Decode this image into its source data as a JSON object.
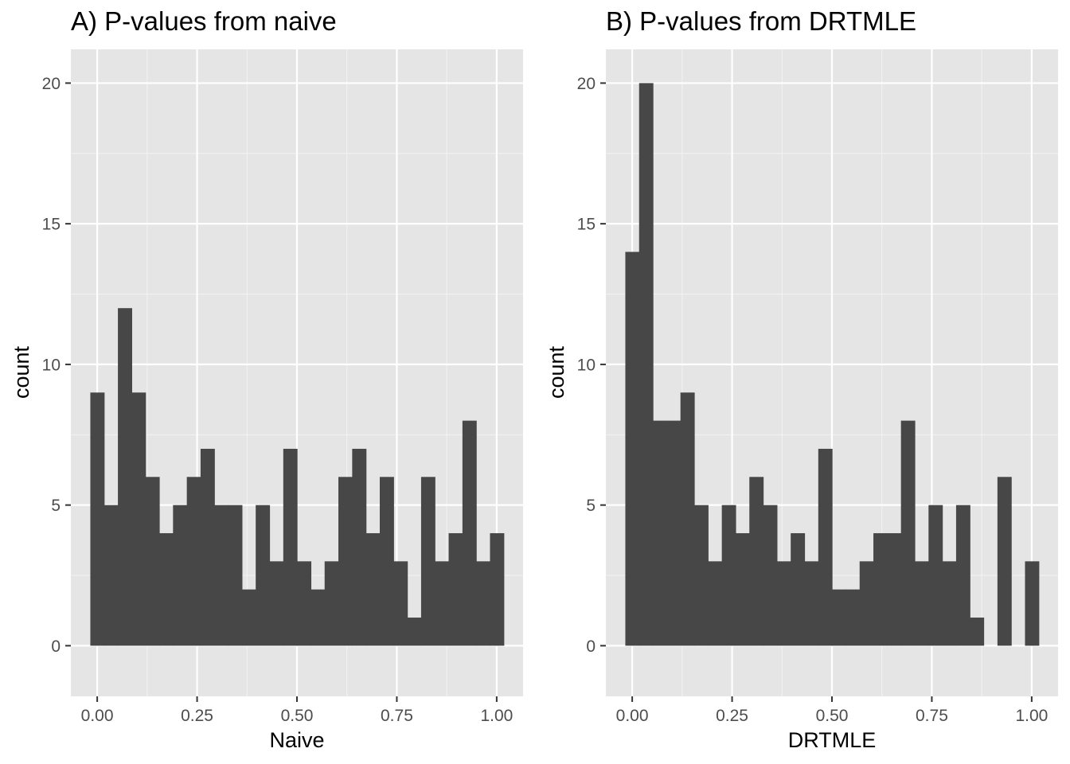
{
  "chart_data": [
    {
      "type": "bar",
      "title": "A) P-values from naive",
      "xlabel": "Naive",
      "ylabel": "count",
      "xlim": [
        -0.066,
        1.066
      ],
      "ylim": [
        -1.8,
        21.2
      ],
      "x_ticks": [
        "0.00",
        "0.25",
        "0.50",
        "0.75",
        "1.00"
      ],
      "y_ticks": [
        "0",
        "5",
        "10",
        "15",
        "20"
      ],
      "grid": true,
      "bin_width": 0.0345,
      "bin_start": -0.01725,
      "values": [
        9,
        5,
        12,
        9,
        6,
        4,
        5,
        6,
        7,
        5,
        5,
        2,
        5,
        3,
        7,
        3,
        2,
        3,
        6,
        7,
        4,
        6,
        3,
        1,
        6,
        3,
        4,
        8,
        3,
        4
      ],
      "bar_color": "#474747",
      "panel_color": "#e5e5e5"
    },
    {
      "type": "bar",
      "title": "B) P-values from DRTMLE",
      "xlabel": "DRTMLE",
      "ylabel": "count",
      "xlim": [
        -0.066,
        1.066
      ],
      "ylim": [
        -1.8,
        21.2
      ],
      "x_ticks": [
        "0.00",
        "0.25",
        "0.50",
        "0.75",
        "1.00"
      ],
      "y_ticks": [
        "0",
        "5",
        "10",
        "15",
        "20"
      ],
      "grid": true,
      "bin_width": 0.0345,
      "bin_start": -0.01725,
      "values": [
        14,
        20,
        8,
        8,
        9,
        5,
        3,
        5,
        4,
        6,
        5,
        3,
        4,
        3,
        7,
        2,
        2,
        3,
        4,
        4,
        8,
        3,
        5,
        3,
        5,
        1,
        0,
        6,
        0,
        3
      ],
      "bar_color": "#474747",
      "panel_color": "#e5e5e5"
    }
  ]
}
